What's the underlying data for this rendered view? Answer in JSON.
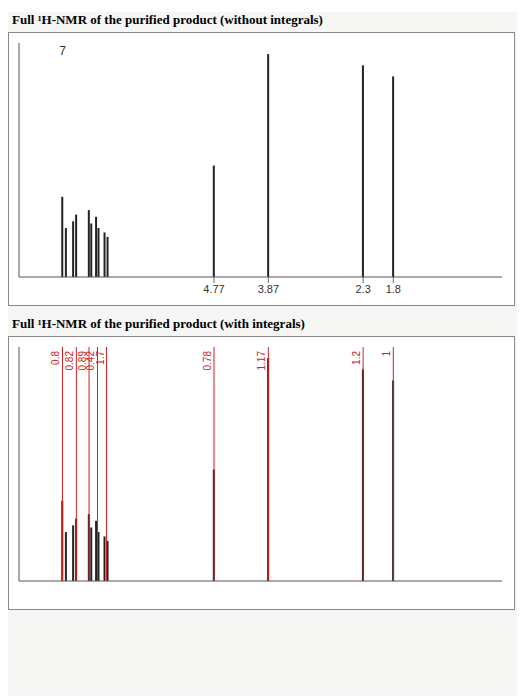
{
  "chart_data": [
    {
      "type": "bar",
      "title": "Full ¹H-NMR of the purified product (without integrals)",
      "x": [
        7.28,
        7.22,
        7.1,
        7.05,
        6.84,
        6.8,
        6.72,
        6.68,
        6.58,
        6.53,
        4.77,
        3.87,
        2.3,
        1.8
      ],
      "values": [
        0.36,
        0.22,
        0.25,
        0.28,
        0.3,
        0.24,
        0.27,
        0.22,
        0.2,
        0.18,
        0.5,
        1.0,
        0.95,
        0.9
      ],
      "color": "#222222",
      "xlim": [
        8,
        0
      ],
      "xticks": [
        4.77,
        3.87,
        2.3,
        1.8
      ],
      "ylim": [
        0,
        1.05
      ],
      "annotations": [
        {
          "x": 7.28,
          "text": "7"
        }
      ],
      "tick_labels": "x",
      "grid": false
    },
    {
      "type": "bar",
      "title": "Full ¹H-NMR of the purified product (with integrals)",
      "x": [
        7.28,
        7.22,
        7.1,
        7.05,
        6.84,
        6.8,
        6.72,
        6.68,
        6.58,
        6.53,
        4.77,
        3.87,
        2.3,
        1.8
      ],
      "values": [
        0.36,
        0.22,
        0.25,
        0.28,
        0.3,
        0.24,
        0.27,
        0.22,
        0.2,
        0.18,
        0.5,
        1.0,
        0.95,
        0.9
      ],
      "color": "#222222",
      "xlim": [
        8,
        0
      ],
      "ylim": [
        0,
        1.05
      ],
      "integrals": [
        {
          "x": 7.28,
          "value": 0.8
        },
        {
          "x": 7.05,
          "value": 0.82
        },
        {
          "x": 6.84,
          "value": 0.89
        },
        {
          "x": 6.7,
          "value": 0.42
        },
        {
          "x": 6.55,
          "value": 1.7
        },
        {
          "x": 4.77,
          "value": 0.78
        },
        {
          "x": 3.87,
          "value": 1.17
        },
        {
          "x": 2.3,
          "value": 1.2
        },
        {
          "x": 1.8,
          "value": 1
        }
      ],
      "integral_color": "#d02020",
      "tick_labels": false,
      "grid": false
    }
  ]
}
